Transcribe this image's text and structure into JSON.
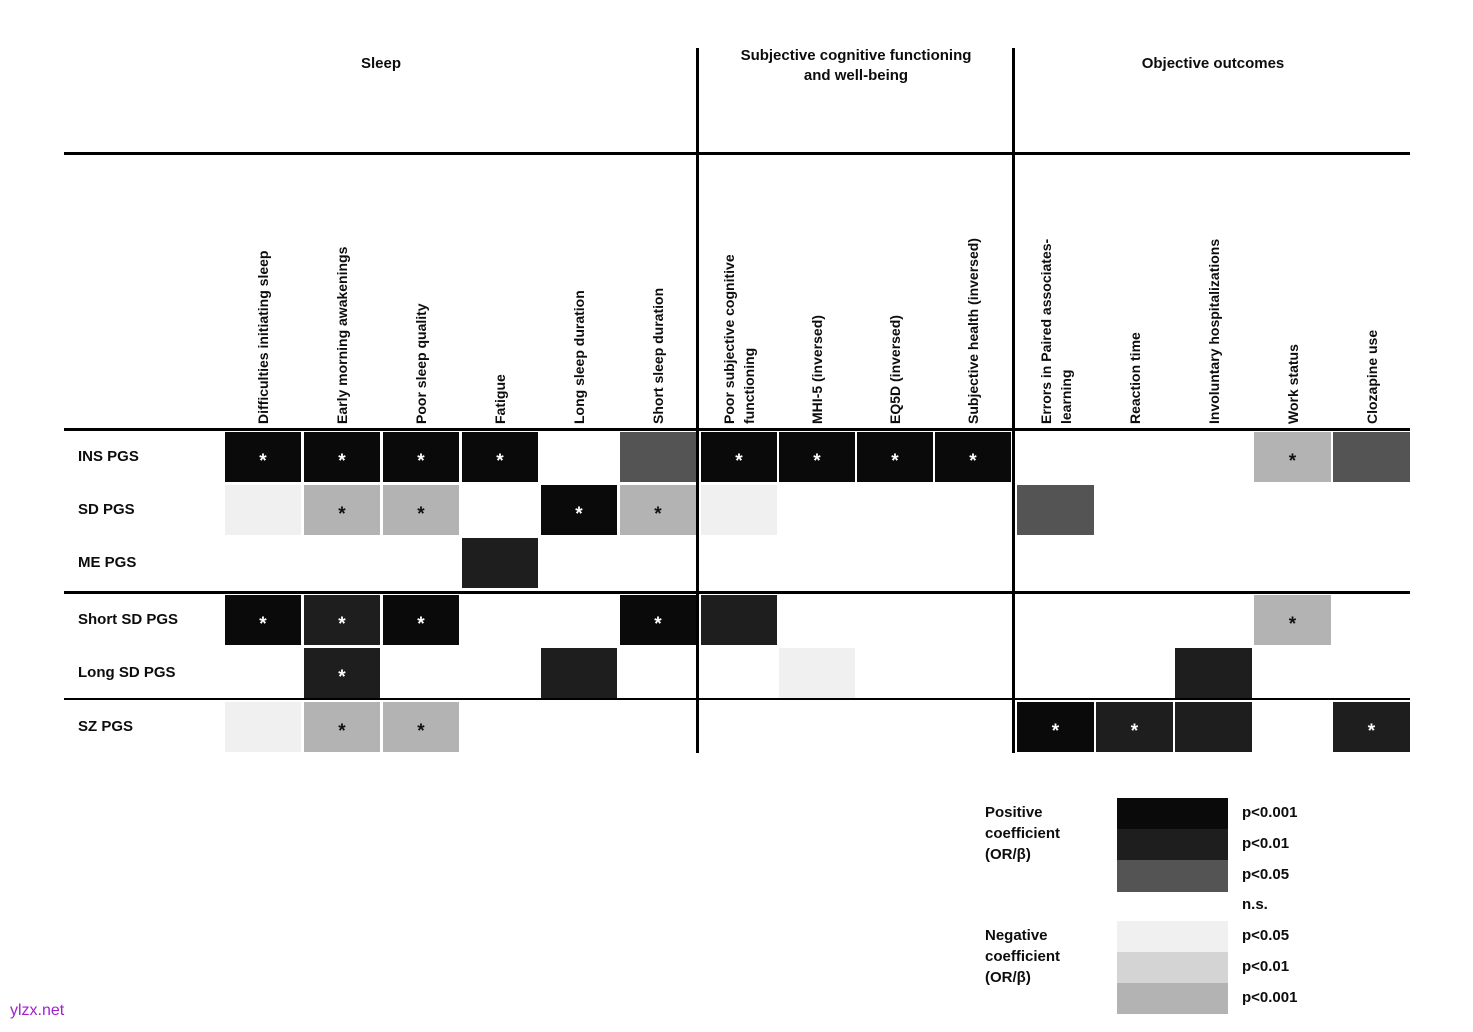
{
  "chart_data": {
    "type": "heatmap",
    "title": "",
    "column_groups": [
      {
        "label": "Sleep",
        "label_lines": [
          "Sleep"
        ],
        "span": 6
      },
      {
        "label": "Subjective cognitive functioning and well-being",
        "label_lines": [
          "Subjective cognitive functioning",
          "and well-being"
        ],
        "span": 4
      },
      {
        "label": "Objective outcomes",
        "label_lines": [
          "Objective outcomes"
        ],
        "span": 5
      }
    ],
    "columns": [
      "Difficulties initiating sleep",
      "Early morning awakenings",
      "Poor sleep quality",
      "Fatigue",
      "Long sleep duration",
      "Short sleep duration",
      "Poor subjective cognitive functioning",
      "MHI-5 (inversed)",
      "EQ5D (inversed)",
      "Subjective health (inversed)",
      "Errors in Paired associates-learning",
      "Reaction time",
      "Involuntary hospitalizations",
      "Work status",
      "Clozapine use"
    ],
    "columns_wrapped": [
      [
        "Difficulties initiating sleep"
      ],
      [
        "Early morning awakenings"
      ],
      [
        "Poor sleep quality"
      ],
      [
        "Fatigue"
      ],
      [
        "Long sleep duration"
      ],
      [
        "Short sleep duration"
      ],
      [
        "Poor subjective cognitive",
        "functioning"
      ],
      [
        "MHI-5 (inversed)"
      ],
      [
        "EQ5D (inversed)"
      ],
      [
        "Subjective health (inversed)"
      ],
      [
        "Errors in Paired associates-",
        "learning"
      ],
      [
        "Reaction time"
      ],
      [
        "Involuntary hospitalizations"
      ],
      [
        "Work status"
      ],
      [
        "Clozapine use"
      ]
    ],
    "rows": [
      "INS PGS",
      "SD PGS",
      "ME PGS",
      "Short SD PGS",
      "Long SD PGS",
      "SZ PGS"
    ],
    "cell_codes": [
      [
        "P3*",
        "P3*",
        "P3*",
        "P3*",
        "0",
        "P1",
        "P3*",
        "P3*",
        "P3*",
        "P3*",
        "0",
        "0",
        "0",
        "N3*",
        "P1"
      ],
      [
        "N1",
        "N3*",
        "N3*",
        "0",
        "P3*",
        "N3*",
        "N1",
        "0",
        "0",
        "0",
        "P1",
        "0",
        "0",
        "0",
        "0"
      ],
      [
        "0",
        "0",
        "0",
        "P2",
        "0",
        "0",
        "0",
        "0",
        "0",
        "0",
        "0",
        "0",
        "0",
        "0",
        "0"
      ],
      [
        "P3*",
        "P2*",
        "P3*",
        "0",
        "0",
        "P3*",
        "P2",
        "0",
        "0",
        "0",
        "0",
        "0",
        "0",
        "N3*",
        "0"
      ],
      [
        "0",
        "P2*",
        "0",
        "0",
        "P2",
        "0",
        "0",
        "N1",
        "0",
        "0",
        "0",
        "0",
        "P2",
        "0",
        "0"
      ],
      [
        "N1",
        "N3*",
        "N3*",
        "0",
        "0",
        "0",
        "0",
        "0",
        "0",
        "0",
        "P3*",
        "P2*",
        "P2",
        "0",
        "P2*"
      ]
    ],
    "code_meanings": {
      "P3": "positive coefficient (OR/β), p<0.001",
      "P2": "positive coefficient (OR/β), p<0.01",
      "P1": "positive coefficient (OR/β), p<0.05",
      "N1": "negative coefficient (OR/β), p<0.05",
      "N2": "negative coefficient (OR/β), p<0.01",
      "N3": "negative coefficient (OR/β), p<0.001",
      "0": "n.s.",
      "*": "asterisk shown inside the cell"
    },
    "colors": {
      "P3": "#0a0a0a",
      "P2": "#1e1e1e",
      "P1": "#545454",
      "N1": "#f0f0f0",
      "N2": "#d4d4d4",
      "N3": "#b3b3b3",
      "0": "#ffffff"
    },
    "legend": {
      "positive_label_lines": [
        "Positive",
        "coefficient",
        "(OR/β)"
      ],
      "negative_label_lines": [
        "Negative",
        "coefficient",
        "(OR/β)"
      ],
      "ns_label": "n.s.",
      "positive_entries": [
        {
          "label": "p<0.001",
          "color": "#0a0a0a"
        },
        {
          "label": "p<0.01",
          "color": "#1e1e1e"
        },
        {
          "label": "p<0.05",
          "color": "#545454"
        }
      ],
      "negative_entries": [
        {
          "label": "p<0.05",
          "color": "#f0f0f0"
        },
        {
          "label": "p<0.01",
          "color": "#d4d4d4"
        },
        {
          "label": "p<0.001",
          "color": "#b3b3b3"
        }
      ]
    }
  },
  "watermark": {
    "text": "ylzx.net",
    "color": "#a21fcf"
  }
}
